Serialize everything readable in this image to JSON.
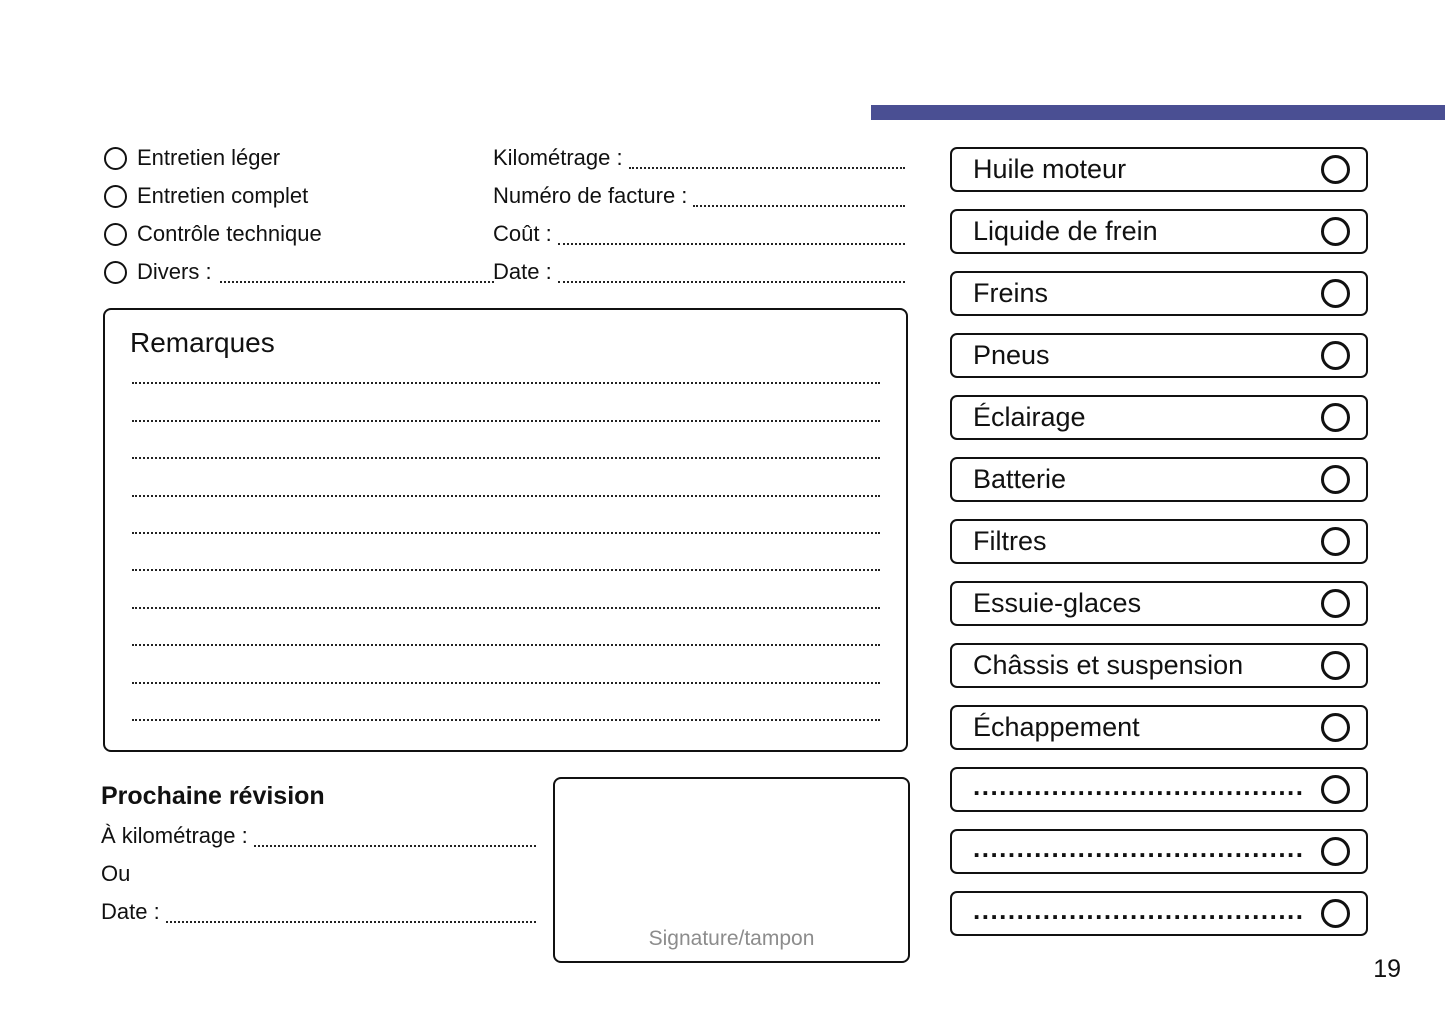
{
  "colors": {
    "accent": "#4A4F93",
    "text": "#111111",
    "muted": "#8C8C8C"
  },
  "service_types": {
    "options": [
      "Entretien léger",
      "Entretien complet",
      "Contrôle technique",
      "Divers :"
    ]
  },
  "record_fields": {
    "fields": [
      "Kilométrage :",
      "Numéro de facture :",
      "Coût :",
      "Date :"
    ]
  },
  "remarks": {
    "title": "Remarques",
    "line_count": 10
  },
  "next_service": {
    "title": "Prochaine révision",
    "field_km": "À kilométrage :",
    "conjunction": "Ou",
    "field_date": "Date :"
  },
  "signature": {
    "label": "Signature/tampon"
  },
  "checklist": {
    "items": [
      "Huile moteur",
      "Liquide de frein",
      "Freins",
      "Pneus",
      "Éclairage",
      "Batterie",
      "Filtres",
      "Essuie-glaces",
      "Châssis et suspension",
      "Échappement",
      "......................................",
      "......................................",
      "......................................"
    ]
  },
  "page_number": "19"
}
